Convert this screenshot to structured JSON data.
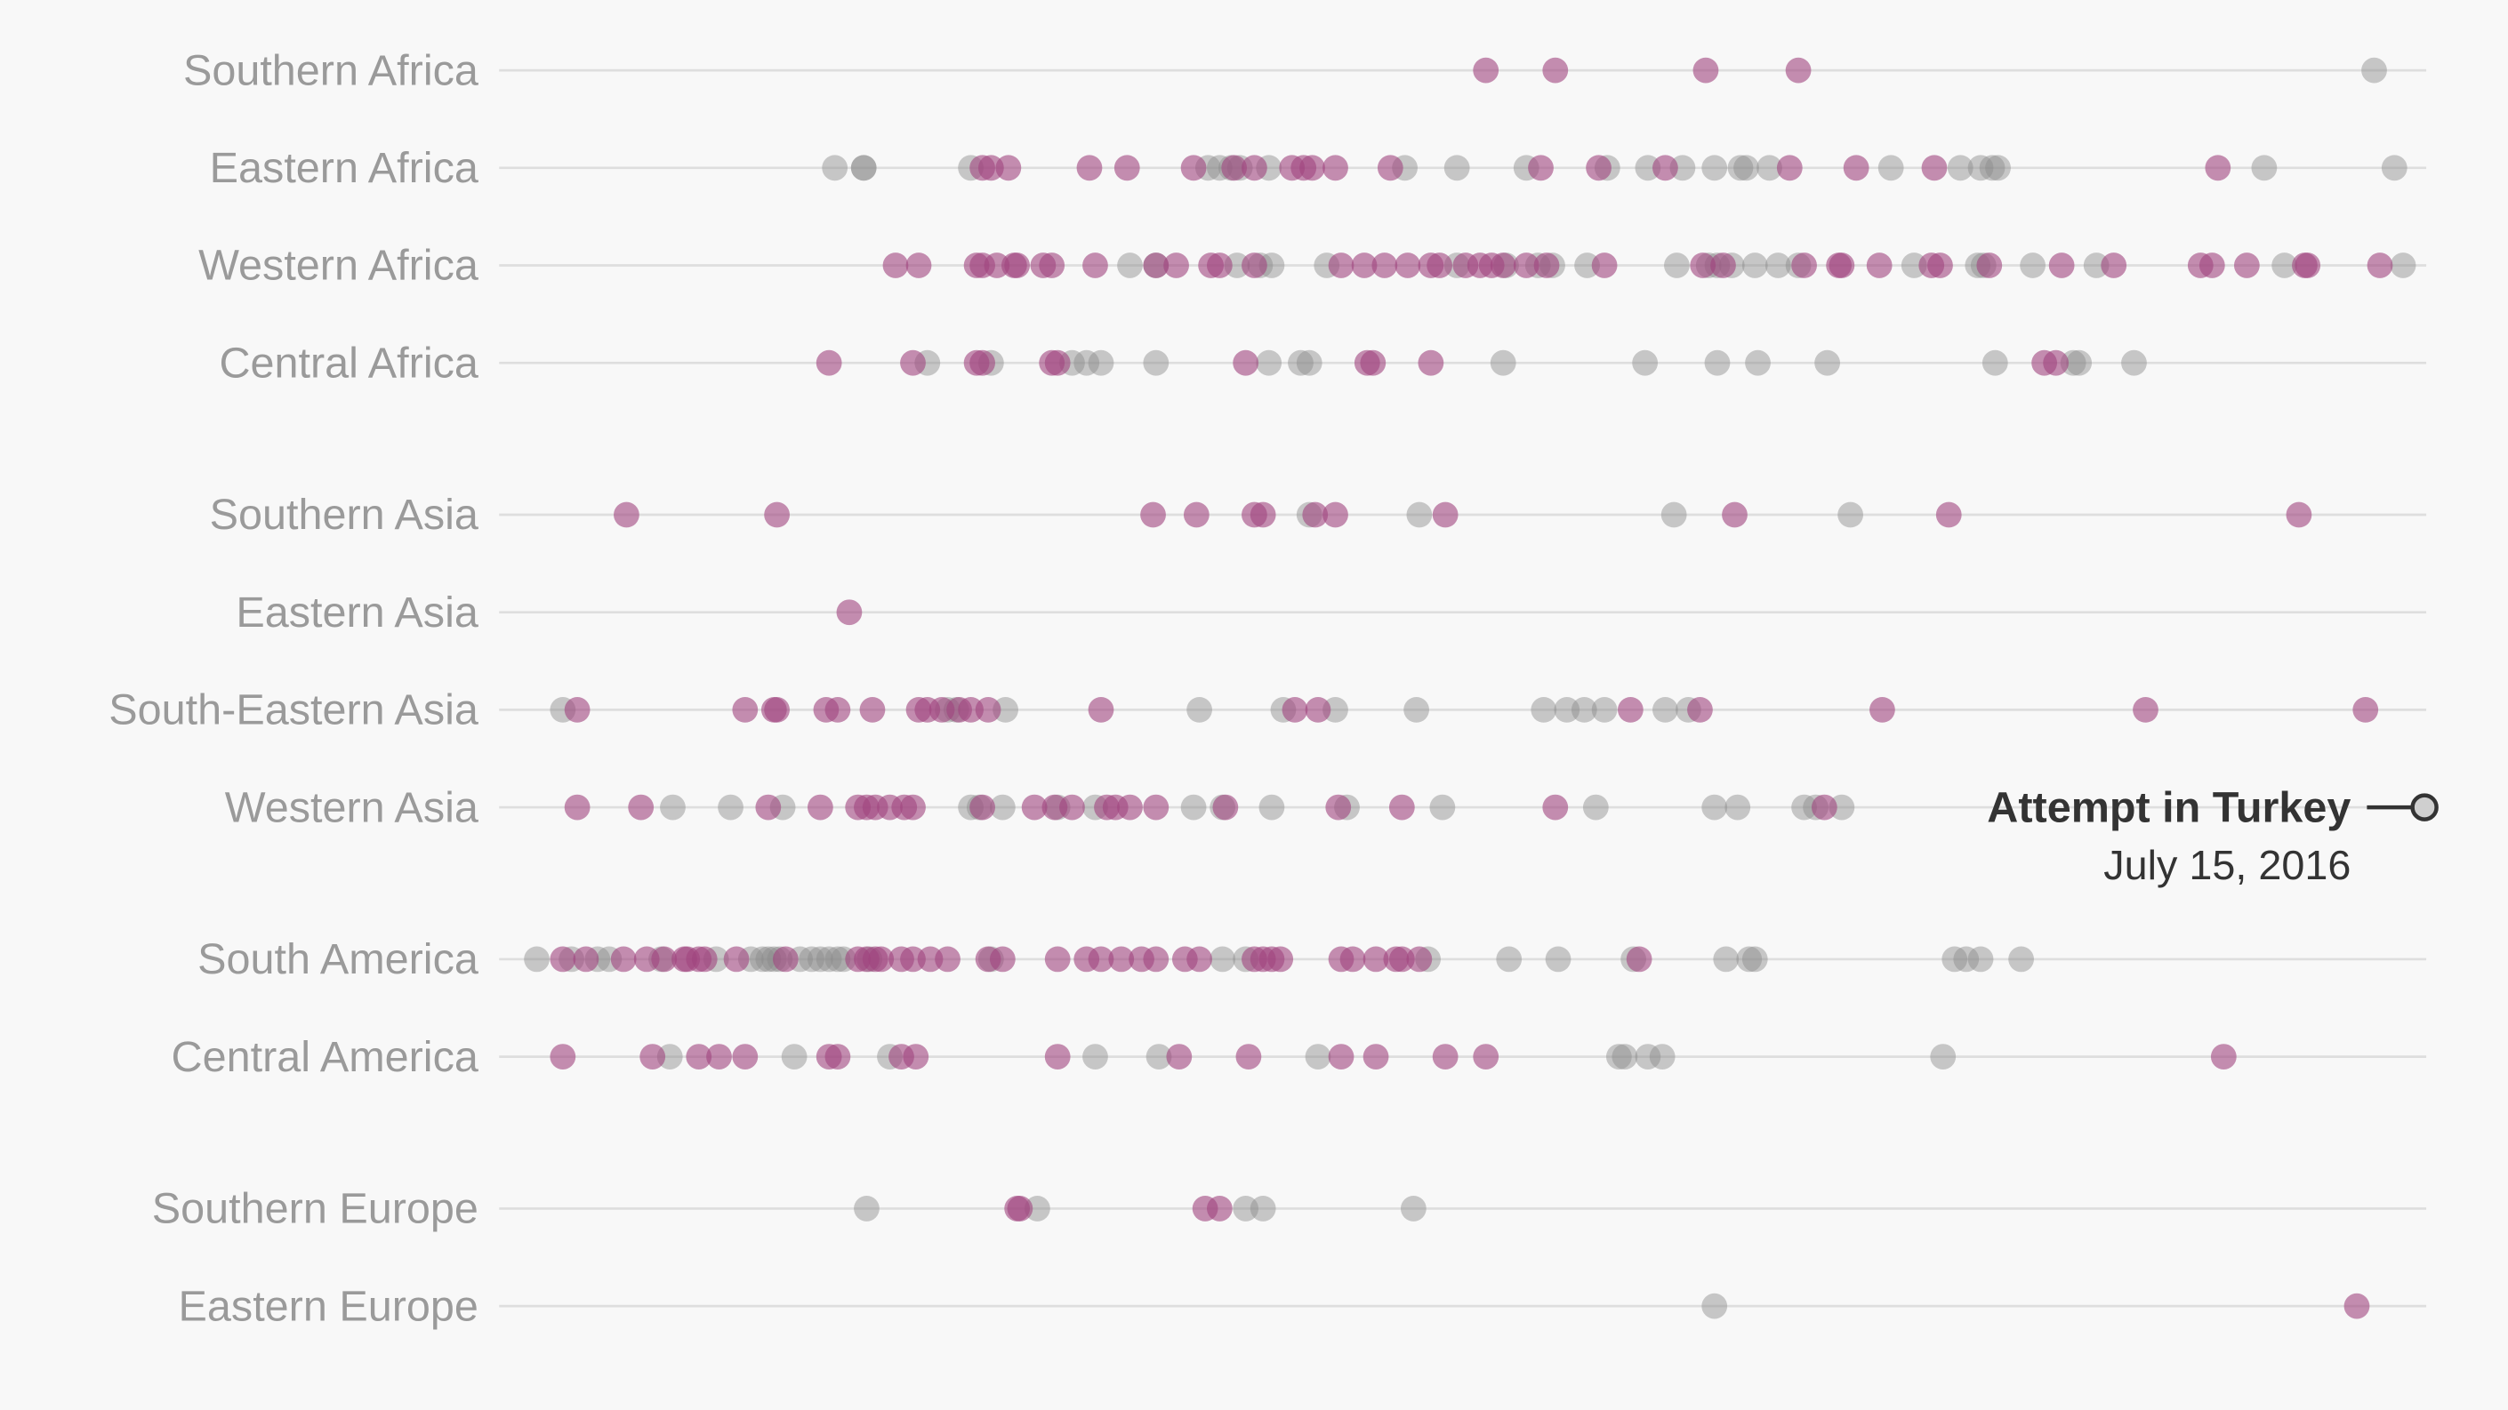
{
  "chart_data": {
    "type": "strip",
    "xlim": [
      1950,
      2016.6
    ],
    "colors": {
      "successful": "#a0457f",
      "failed": "#8a8a8a"
    },
    "groups": [
      {
        "rows": [
          {
            "label": "Southern Africa",
            "successful": [
              1984.1,
              1986.5,
              1991.7,
              1994.9
            ],
            "failed": [
              2014.8
            ]
          },
          {
            "label": "Eastern Africa",
            "successful": [
              1966.7,
              1967.0,
              1967.6,
              1970.4,
              1971.7,
              1974.0,
              1975.4,
              1976.1,
              1977.4,
              1977.8,
              1978.1,
              1978.9,
              1980.8,
              1986.0,
              1988.0,
              1990.3,
              1994.6,
              1996.9,
              1999.6,
              2009.4
            ],
            "failed": [
              1961.6,
              1962.6,
              1962.6,
              1966.3,
              1974.5,
              1974.9,
              1975.3,
              1975.6,
              1976.6,
              1981.3,
              1983.1,
              1985.5,
              1988.3,
              1989.7,
              1990.9,
              1992.0,
              1992.9,
              1993.1,
              1993.9,
              1998.1,
              2000.5,
              2001.2,
              2001.6,
              2001.8,
              2011.0,
              2015.5
            ]
          },
          {
            "label": "Western Africa",
            "successful": [
              1963.7,
              1964.5,
              1966.5,
              1966.7,
              1967.2,
              1967.8,
              1967.9,
              1968.8,
              1969.1,
              1970.6,
              1972.7,
              1973.4,
              1974.6,
              1974.9,
              1976.1,
              1979.1,
              1979.9,
              1980.6,
              1981.4,
              1982.2,
              1982.5,
              1983.4,
              1983.9,
              1984.3,
              1984.7,
              1985.5,
              1986.2,
              1988.2,
              1991.6,
              1992.3,
              1995.1,
              1996.3,
              1996.4,
              1997.7,
              1999.5,
              1999.8,
              2001.5,
              2004.0,
              2005.8,
              2008.8,
              2009.2,
              2010.4,
              2012.4,
              2012.5,
              2015.0
            ],
            "failed": [
              1971.8,
              1972.7,
              1975.5,
              1976.3,
              1976.7,
              1978.6,
              1983.1,
              1984.8,
              1985.9,
              1986.4,
              1987.6,
              1990.7,
              1991.8,
              1992.1,
              1992.6,
              1993.4,
              1994.2,
              1994.9,
              1998.9,
              2001.1,
              2001.3,
              2003.0,
              2005.2,
              2011.7,
              2015.8
            ]
          },
          {
            "label": "Central Africa",
            "successful": [
              1961.4,
              1964.3,
              1966.5,
              1966.7,
              1969.1,
              1969.3,
              1975.8,
              1980.0,
              1980.2,
              1982.2,
              2003.4,
              2003.8
            ],
            "failed": [
              1964.8,
              1967.0,
              1969.8,
              1970.3,
              1970.8,
              1972.7,
              1976.6,
              1977.7,
              1978.0,
              1984.7,
              1989.6,
              1992.1,
              1993.5,
              1995.9,
              2001.7,
              2004.4,
              2004.6,
              2006.5
            ]
          }
        ]
      },
      {
        "rows": [
          {
            "label": "Southern Asia",
            "successful": [
              1954.4,
              1959.6,
              1972.6,
              1974.1,
              1976.1,
              1976.4,
              1978.2,
              1978.9,
              1982.7,
              1992.7,
              2000.1,
              2012.2
            ],
            "failed": [
              1978.0,
              1981.8,
              1990.6,
              1996.7
            ]
          },
          {
            "label": "Eastern Asia",
            "successful": [
              1962.1
            ],
            "failed": []
          },
          {
            "label": "South-Eastern Asia",
            "successful": [
              1952.7,
              1958.5,
              1959.5,
              1959.6,
              1961.3,
              1961.7,
              1962.9,
              1964.5,
              1964.8,
              1965.3,
              1965.9,
              1966.3,
              1966.9,
              1970.8,
              1977.5,
              1978.3,
              1989.1,
              1991.5,
              1997.8,
              2006.9,
              2014.5
            ],
            "failed": [
              1952.2,
              1965.5,
              1965.8,
              1967.5,
              1974.2,
              1977.1,
              1978.9,
              1981.7,
              1986.1,
              1986.9,
              1987.5,
              1988.2,
              1990.3,
              1991.1
            ]
          },
          {
            "label": "Western Asia",
            "successful": [
              1952.7,
              1954.9,
              1959.3,
              1961.1,
              1962.4,
              1962.7,
              1963.0,
              1963.5,
              1964.0,
              1964.3,
              1966.7,
              1968.5,
              1969.2,
              1969.8,
              1971.0,
              1971.3,
              1971.8,
              1972.7,
              1975.1,
              1979.0,
              1981.2,
              1986.5,
              1995.8
            ],
            "failed": [
              1956.0,
              1958.0,
              1959.8,
              1966.3,
              1966.6,
              1967.4,
              1969.3,
              1970.6,
              1974.0,
              1975.0,
              1976.7,
              1979.3,
              1982.6,
              1987.9,
              1992.0,
              1992.8,
              1995.1,
              1995.5,
              1996.4,
              2016.54
            ],
            "annotation": {
              "title": "Attempt in Turkey",
              "date": "July 15, 2016"
            }
          }
        ]
      },
      {
        "rows": [
          {
            "label": "South America",
            "successful": [
              1952.2,
              1953.0,
              1954.3,
              1955.1,
              1955.7,
              1956.4,
              1956.5,
              1956.9,
              1957.1,
              1958.2,
              1959.9,
              1962.4,
              1962.7,
              1963.0,
              1963.2,
              1963.9,
              1964.3,
              1964.9,
              1965.5,
              1966.9,
              1967.4,
              1969.3,
              1970.3,
              1970.8,
              1971.5,
              1972.2,
              1972.7,
              1973.7,
              1974.2,
              1976.1,
              1976.4,
              1976.7,
              1977.0,
              1979.1,
              1979.5,
              1980.3,
              1981.0,
              1981.2,
              1981.8,
              1989.4
            ],
            "failed": [
              1951.3,
              1952.5,
              1953.4,
              1953.8,
              1955.6,
              1957.5,
              1958.7,
              1959.1,
              1959.3,
              1959.5,
              1959.7,
              1960.4,
              1960.8,
              1961.1,
              1961.4,
              1961.7,
              1961.9,
              1962.8,
              1967.0,
              1975.0,
              1975.8,
              1982.1,
              1984.9,
              1986.6,
              1989.2,
              1992.4,
              1993.2,
              1993.4,
              2000.3,
              2000.7,
              2001.2,
              2002.6
            ]
          },
          {
            "label": "Central America",
            "successful": [
              1952.2,
              1955.3,
              1956.9,
              1957.6,
              1958.5,
              1961.4,
              1961.7,
              1963.9,
              1964.4,
              1969.3,
              1973.5,
              1975.9,
              1979.1,
              1980.3,
              1982.7,
              1984.1,
              2009.6
            ],
            "failed": [
              1955.9,
              1960.2,
              1963.5,
              1970.6,
              1972.8,
              1978.3,
              1988.7,
              1988.9,
              1989.7,
              1990.2,
              1999.9
            ]
          }
        ]
      },
      {
        "rows": [
          {
            "label": "Southern Europe",
            "successful": [
              1967.9,
              1968.0,
              1974.4,
              1974.9
            ],
            "failed": [
              1962.7,
              1968.6,
              1975.8,
              1976.4,
              1981.6
            ]
          },
          {
            "label": "Eastern Europe",
            "successful": [
              2014.2
            ],
            "failed": [
              1992.0
            ]
          }
        ]
      }
    ]
  }
}
